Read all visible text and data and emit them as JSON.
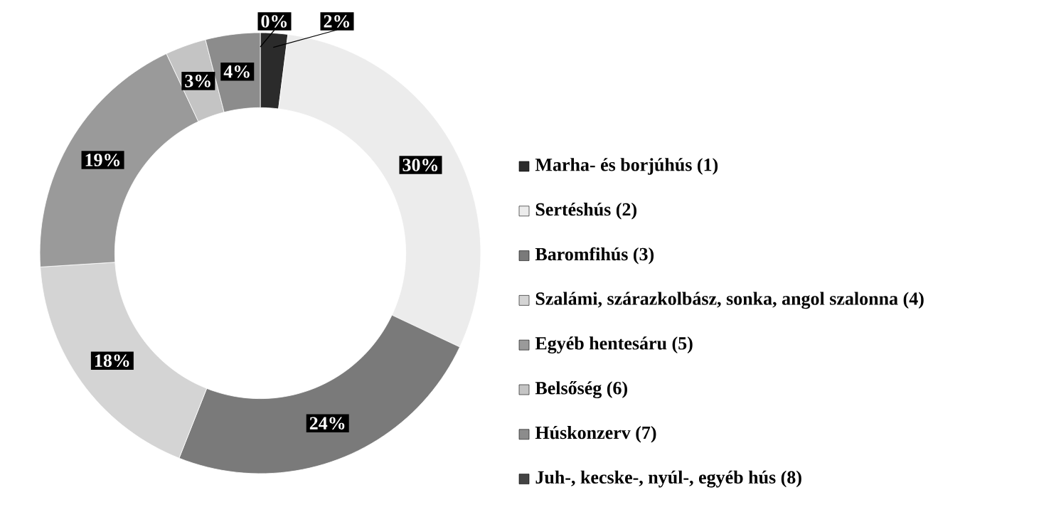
{
  "chart_data": {
    "type": "donut",
    "categories": [
      "Marha- és borjúhús (1)",
      "Sertéshús (2)",
      "Baromfihús (3)",
      "Szalámi, szárazkolbász, sonka, angol szalonna (4)",
      "Egyéb hentesáru (5)",
      "Belsőség (6)",
      "Húskonzerv (7)",
      "Juh-, kecske-, nyúl-, egyéb hús (8)"
    ],
    "values": [
      2,
      30,
      24,
      18,
      19,
      3,
      4,
      0
    ],
    "value_labels": [
      "2%",
      "30%",
      "24%",
      "18%",
      "19%",
      "3%",
      "4%",
      "0%"
    ],
    "colors": [
      "#2b2b2b",
      "#ececec",
      "#7a7a7a",
      "#d4d4d4",
      "#9a9a9a",
      "#c4c4c4",
      "#8c8c8c",
      "#444444"
    ],
    "legend": "right"
  }
}
